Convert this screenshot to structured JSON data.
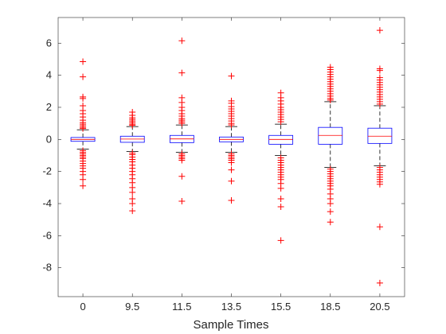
{
  "chart_data": {
    "type": "box",
    "xlabel": "Sample Times",
    "ylabel": "",
    "title": "",
    "categories": [
      "0",
      "9.5",
      "11.5",
      "13.5",
      "15.5",
      "18.5",
      "20.5"
    ],
    "ylim": [
      -9.8,
      7.6
    ],
    "yticks": [
      -8,
      -6,
      -4,
      -2,
      0,
      2,
      4,
      6
    ],
    "ytick_labels": [
      "-8",
      "-6",
      "-4",
      "-2",
      "0",
      "2",
      "4",
      "6"
    ],
    "grid": false,
    "colors": {
      "box": "#0000ff",
      "median": "#ff0000",
      "whisker": "#000000",
      "outlier": "#ff0000",
      "axis": "#262626"
    },
    "boxes": [
      {
        "category": "0",
        "q1": -0.12,
        "median": 0.0,
        "q3": 0.12,
        "whisker_low": -0.6,
        "whisker_high": 0.6,
        "outliers": [
          4.85,
          3.9,
          2.65,
          2.55,
          2.1,
          1.8,
          1.6,
          1.4,
          1.2,
          1.05,
          0.95,
          0.85,
          0.75,
          0.68,
          -0.7,
          -0.8,
          -0.9,
          -1.0,
          -1.1,
          -1.2,
          -1.35,
          -1.5,
          -1.65,
          -1.8,
          -2.0,
          -2.2,
          -2.5,
          -2.9
        ]
      },
      {
        "category": "9.5",
        "q1": -0.18,
        "median": 0.02,
        "q3": 0.2,
        "whisker_low": -0.75,
        "whisker_high": 0.8,
        "outliers": [
          1.7,
          1.5,
          1.35,
          1.25,
          1.15,
          1.05,
          0.95,
          0.88,
          -0.85,
          -0.95,
          -1.1,
          -1.25,
          -1.4,
          -1.6,
          -1.8,
          -2.0,
          -2.2,
          -2.45,
          -2.7,
          -3.0,
          -3.3,
          -3.7,
          -4.0,
          -4.45
        ]
      },
      {
        "category": "11.5",
        "q1": -0.2,
        "median": 0.03,
        "q3": 0.25,
        "whisker_low": -0.8,
        "whisker_high": 0.9,
        "outliers": [
          6.15,
          4.15,
          2.6,
          2.3,
          2.0,
          1.8,
          1.6,
          1.45,
          1.3,
          1.2,
          1.1,
          1.0,
          -0.9,
          -1.0,
          -1.1,
          -1.2,
          -1.3,
          -2.3,
          -3.85
        ]
      },
      {
        "category": "13.5",
        "q1": -0.15,
        "median": 0.0,
        "q3": 0.15,
        "whisker_low": -0.8,
        "whisker_high": 0.8,
        "outliers": [
          3.95,
          2.4,
          2.25,
          2.05,
          1.9,
          1.75,
          1.6,
          1.45,
          1.3,
          1.15,
          1.0,
          0.9,
          -0.9,
          -1.0,
          -1.1,
          -1.2,
          -1.3,
          -1.45,
          -1.9,
          -2.6,
          -3.8
        ]
      },
      {
        "category": "15.5",
        "q1": -0.3,
        "median": 0.0,
        "q3": 0.25,
        "whisker_low": -1.0,
        "whisker_high": 0.95,
        "outliers": [
          2.9,
          2.6,
          2.4,
          2.2,
          2.0,
          1.85,
          1.7,
          1.55,
          1.4,
          1.25,
          1.1,
          -1.15,
          -1.3,
          -1.45,
          -1.6,
          -1.75,
          -1.9,
          -2.05,
          -2.2,
          -2.35,
          -2.5,
          -2.75,
          -3.05,
          -3.7,
          -4.2,
          -6.3
        ]
      },
      {
        "category": "18.5",
        "q1": -0.3,
        "median": 0.25,
        "q3": 0.75,
        "whisker_low": -1.75,
        "whisker_high": 2.35,
        "outliers": [
          4.5,
          4.35,
          4.2,
          4.05,
          3.9,
          3.75,
          3.6,
          3.45,
          3.3,
          3.15,
          3.0,
          2.85,
          2.7,
          2.55,
          2.45,
          -1.85,
          -2.0,
          -2.15,
          -2.3,
          -2.45,
          -2.6,
          -2.75,
          -2.9,
          -3.1,
          -3.4,
          -3.7,
          -4.0,
          -4.5,
          -5.15
        ]
      },
      {
        "category": "20.5",
        "q1": -0.25,
        "median": 0.2,
        "q3": 0.7,
        "whisker_low": -1.65,
        "whisker_high": 2.1,
        "outliers": [
          6.8,
          4.4,
          4.3,
          3.85,
          3.7,
          3.55,
          3.4,
          3.25,
          3.1,
          2.95,
          2.8,
          2.65,
          2.5,
          2.35,
          2.2,
          -1.75,
          -1.9,
          -2.05,
          -2.2,
          -2.35,
          -2.5,
          -2.65,
          -2.8,
          -5.45,
          -8.95
        ]
      }
    ]
  }
}
